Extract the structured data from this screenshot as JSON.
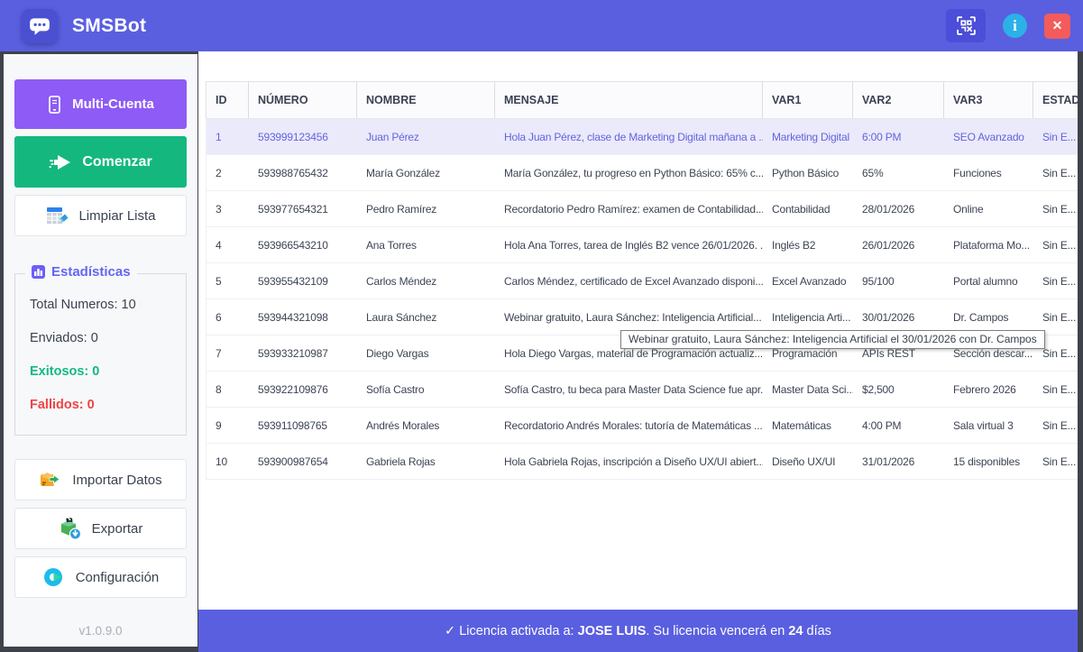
{
  "header": {
    "title": "SMSBot",
    "info_glyph": "i",
    "close_glyph": "✕"
  },
  "sidebar": {
    "multi_account_label": "Multi-Cuenta",
    "start_label": "Comenzar",
    "clear_list_label": "Limpiar Lista",
    "stats": {
      "title": "Estadísticas",
      "total": "Total Numeros: 10",
      "sent": "Enviados: 0",
      "success": "Exitosos: 0",
      "failed": "Fallidos: 0"
    },
    "import_label": "Importar Datos",
    "export_label": "Exportar",
    "settings_label": "Configuración",
    "version": "v1.0.9.0"
  },
  "table": {
    "columns": [
      "ID",
      "NÚMERO",
      "NOMBRE",
      "MENSAJE",
      "VAR1",
      "VAR2",
      "VAR3",
      "ESTADO"
    ],
    "column_keys": [
      "id",
      "numero",
      "nombre",
      "mensaje",
      "var1",
      "var2",
      "var3",
      "estado"
    ],
    "selected_index": 0,
    "rows": [
      {
        "id": "1",
        "numero": "593999123456",
        "nombre": "Juan Pérez",
        "mensaje": "Hola Juan Pérez, clase de Marketing Digital mañana a ...",
        "var1": "Marketing Digital",
        "var2": "6:00 PM",
        "var3": "SEO Avanzado",
        "estado": "Sin E..."
      },
      {
        "id": "2",
        "numero": "593988765432",
        "nombre": "María González",
        "mensaje": "María González, tu progreso en Python Básico: 65% c...",
        "var1": "Python Básico",
        "var2": "65%",
        "var3": "Funciones",
        "estado": "Sin E..."
      },
      {
        "id": "3",
        "numero": "593977654321",
        "nombre": "Pedro Ramírez",
        "mensaje": "Recordatorio Pedro Ramírez: examen de Contabilidad...",
        "var1": "Contabilidad",
        "var2": "28/01/2026",
        "var3": "Online",
        "estado": "Sin E..."
      },
      {
        "id": "4",
        "numero": "593966543210",
        "nombre": "Ana Torres",
        "mensaje": "Hola Ana Torres, tarea de Inglés B2 vence 26/01/2026. ...",
        "var1": "Inglés B2",
        "var2": "26/01/2026",
        "var3": "Plataforma Mo...",
        "estado": "Sin E..."
      },
      {
        "id": "5",
        "numero": "593955432109",
        "nombre": "Carlos Méndez",
        "mensaje": "Carlos Méndez, certificado de Excel Avanzado disponi...",
        "var1": "Excel Avanzado",
        "var2": "95/100",
        "var3": "Portal alumno",
        "estado": "Sin E..."
      },
      {
        "id": "6",
        "numero": "593944321098",
        "nombre": "Laura Sánchez",
        "mensaje": "Webinar gratuito, Laura Sánchez: Inteligencia Artificial...",
        "var1": "Inteligencia Arti...",
        "var2": "30/01/2026",
        "var3": "Dr. Campos",
        "estado": "Sin E..."
      },
      {
        "id": "7",
        "numero": "593933210987",
        "nombre": "Diego Vargas",
        "mensaje": "Hola Diego Vargas, material de Programación actualiz...",
        "var1": "Programación",
        "var2": "APIs REST",
        "var3": "Sección descar...",
        "estado": "Sin E..."
      },
      {
        "id": "8",
        "numero": "593922109876",
        "nombre": "Sofía Castro",
        "mensaje": "Sofía Castro, tu beca para Master Data Science fue apr...",
        "var1": "Master Data Sci...",
        "var2": "$2,500",
        "var3": "Febrero 2026",
        "estado": "Sin E..."
      },
      {
        "id": "9",
        "numero": "593911098765",
        "nombre": "Andrés Morales",
        "mensaje": "Recordatorio Andrés Morales: tutoría de Matemáticas ...",
        "var1": "Matemáticas",
        "var2": "4:00 PM",
        "var3": "Sala virtual 3",
        "estado": "Sin E..."
      },
      {
        "id": "10",
        "numero": "593900987654",
        "nombre": "Gabriela Rojas",
        "mensaje": "Hola Gabriela Rojas, inscripción a Diseño UX/UI abiert...",
        "var1": "Diseño UX/UI",
        "var2": "31/01/2026",
        "var3": "15 disponibles",
        "estado": "Sin E..."
      }
    ]
  },
  "tooltip": {
    "text": "Webinar gratuito, Laura Sánchez: Inteligencia Artificial el 30/01/2026 con Dr. Campos"
  },
  "footer": {
    "prefix": "✓ Licencia activada a: ",
    "licensee": "JOSE LUIS",
    "middle": ". Su licencia vencerá en ",
    "days": "24",
    "suffix": " días"
  },
  "colors": {
    "header_bar": "#5A5FE0",
    "footer_bar": "#5A5FE0",
    "multi_account_button": "#8E5BF6",
    "start_button": "#14B87F",
    "success_text": "#10B981",
    "error_text": "#EF4444",
    "stats_title": "#6366F1",
    "selected_row_bg": "#EAEAFB",
    "selected_row_text": "#6562DE",
    "close_button": "#F45B5B",
    "info_button": "#2BB1E8",
    "qr_button": "#4A4ED8",
    "sidebar_bg": "#F7F8FA",
    "frame": "#3E434B"
  }
}
